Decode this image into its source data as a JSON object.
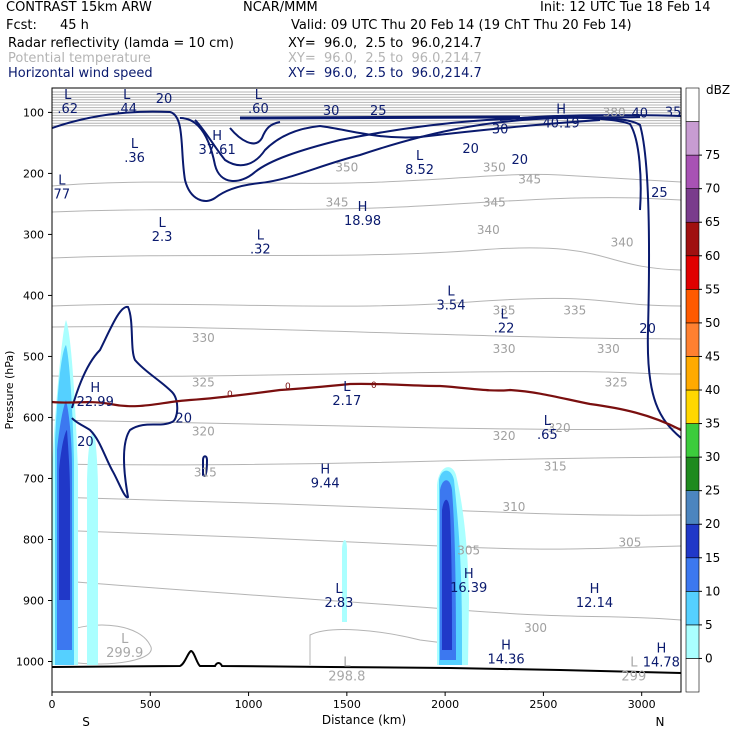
{
  "header": {
    "model": "CONTRAST 15km ARW",
    "org": "NCAR/MMM",
    "init": "Init: 12 UTC Tue 18 Feb 14",
    "fcst_label": "Fcst:",
    "fcst_value": "45 h",
    "valid": "Valid: 09 UTC Thu 20 Feb 14 (19 ChT Thu 20 Feb 14)",
    "fields": [
      {
        "name": "Radar reflectivity (lamda = 10 cm)",
        "xy": "XY=  96.0,  2.5 to  96.0,214.7",
        "color": "#000000"
      },
      {
        "name": "Potential temperature",
        "xy": "XY=  96.0,  2.5 to  96.0,214.7",
        "color": "#b4b4b4"
      },
      {
        "name": "Horizontal wind speed",
        "xy": "XY=  96.0,  2.5 to  96.0,214.7",
        "color": "#0a1a6e"
      }
    ]
  },
  "chart_data": {
    "type": "cross-section",
    "xlabel": "Distance (km)",
    "ylabel": "Pressure (hPa)",
    "xlim": [
      0,
      3200
    ],
    "ylim": [
      1050,
      60
    ],
    "x_ticks": [
      0,
      500,
      1000,
      1500,
      2000,
      2500,
      3000
    ],
    "y_ticks": [
      100,
      200,
      300,
      400,
      500,
      600,
      700,
      800,
      900,
      1000
    ],
    "x_end_labels": {
      "left": "S",
      "right": "N"
    },
    "colorbar": {
      "unit": "dBZ",
      "levels": [
        0,
        5,
        10,
        15,
        20,
        25,
        30,
        35,
        40,
        45,
        50,
        55,
        60,
        65,
        70,
        75
      ],
      "colors": [
        "#ffffff",
        "#aaffff",
        "#55d0ff",
        "#3c78f0",
        "#2038c8",
        "#4c85bf",
        "#1e8a1e",
        "#3ccc3c",
        "#ffd700",
        "#ffaa00",
        "#ff8030",
        "#ff5a00",
        "#e00000",
        "#a01010",
        "#7a3c8c",
        "#a852b4",
        "#c89cd2",
        "#ffffff"
      ]
    },
    "theta_labels": [
      {
        "x": 1500,
        "p": 190,
        "t": "350"
      },
      {
        "x": 2250,
        "p": 190,
        "t": "350"
      },
      {
        "x": 2250,
        "p": 248,
        "t": "345"
      },
      {
        "x": 1450,
        "p": 248,
        "t": "345"
      },
      {
        "x": 2220,
        "p": 293,
        "t": "340"
      },
      {
        "x": 2900,
        "p": 313,
        "t": "340"
      },
      {
        "x": 2300,
        "p": 425,
        "t": "335"
      },
      {
        "x": 2660,
        "p": 425,
        "t": "335"
      },
      {
        "x": 770,
        "p": 470,
        "t": "330"
      },
      {
        "x": 2300,
        "p": 488,
        "t": "330"
      },
      {
        "x": 2830,
        "p": 488,
        "t": "330"
      },
      {
        "x": 770,
        "p": 543,
        "t": "325"
      },
      {
        "x": 2870,
        "p": 543,
        "t": "325"
      },
      {
        "x": 770,
        "p": 623,
        "t": "320"
      },
      {
        "x": 2300,
        "p": 630,
        "t": "320"
      },
      {
        "x": 2580,
        "p": 617,
        "t": "320"
      },
      {
        "x": 780,
        "p": 690,
        "t": "315"
      },
      {
        "x": 2560,
        "p": 680,
        "t": "315"
      },
      {
        "x": 2350,
        "p": 747,
        "t": "310"
      },
      {
        "x": 2120,
        "p": 818,
        "t": "305"
      },
      {
        "x": 2940,
        "p": 805,
        "t": "305"
      },
      {
        "x": 2460,
        "p": 945,
        "t": "300"
      },
      {
        "x": 2430,
        "p": 210,
        "t": "345"
      },
      {
        "x": 2860,
        "p": 100,
        "t": "380"
      }
    ],
    "extrema": [
      {
        "type": "L",
        "value": ".62",
        "x": 80,
        "p": 78,
        "c": "navy"
      },
      {
        "type": "L",
        "value": ".44",
        "x": 380,
        "p": 78,
        "c": "navy"
      },
      {
        "type": "L",
        "value": ".60",
        "x": 1050,
        "p": 78,
        "c": "navy"
      },
      {
        "type": "L",
        "value": ".36",
        "x": 420,
        "p": 158,
        "c": "navy"
      },
      {
        "type": "H",
        "value": "37.61",
        "x": 840,
        "p": 145,
        "c": "navy"
      },
      {
        "type": "L",
        "value": "8.52",
        "x": 1870,
        "p": 178,
        "c": "navy"
      },
      {
        "type": "H",
        "value": "40.19",
        "x": 2590,
        "p": 102,
        "c": "navy"
      },
      {
        "type": "L",
        "value": "77",
        "x": 50,
        "p": 218,
        "c": "navy"
      },
      {
        "type": "H",
        "value": "18.98",
        "x": 1580,
        "p": 262,
        "c": "navy"
      },
      {
        "type": "L",
        "value": "2.3",
        "x": 560,
        "p": 288,
        "c": "navy"
      },
      {
        "type": "L",
        "value": ".32",
        "x": 1060,
        "p": 308,
        "c": "navy"
      },
      {
        "type": "L",
        "value": "3.54",
        "x": 2030,
        "p": 400,
        "c": "navy"
      },
      {
        "type": "L",
        "value": ".22",
        "x": 2300,
        "p": 438,
        "c": "navy"
      },
      {
        "type": "H",
        "value": "22.99",
        "x": 220,
        "p": 558,
        "c": "navy"
      },
      {
        "type": "L",
        "value": "2.17",
        "x": 1500,
        "p": 557,
        "c": "navy"
      },
      {
        "type": "L",
        "value": ".65",
        "x": 2520,
        "p": 612,
        "c": "navy"
      },
      {
        "type": "H",
        "value": "9.44",
        "x": 1390,
        "p": 692,
        "c": "navy"
      },
      {
        "type": "L",
        "value": "2.83",
        "x": 1460,
        "p": 888,
        "c": "navy"
      },
      {
        "type": "H",
        "value": "16.39",
        "x": 2120,
        "p": 863,
        "c": "navy"
      },
      {
        "type": "H",
        "value": "12.14",
        "x": 2760,
        "p": 888,
        "c": "navy"
      },
      {
        "type": "H",
        "value": "14.36",
        "x": 2310,
        "p": 980,
        "c": "navy"
      },
      {
        "type": "H",
        "value": "14.78",
        "x": 3100,
        "p": 985,
        "c": "navy"
      },
      {
        "type": "L",
        "value": "299.9",
        "x": 370,
        "p": 970,
        "c": "gray"
      },
      {
        "type": "L",
        "value": "298.8",
        "x": 1500,
        "p": 1008,
        "c": "gray"
      },
      {
        "type": "L",
        "value": "299",
        "x": 2960,
        "p": 1008,
        "c": "gray"
      }
    ],
    "wind_labels": [
      {
        "x": 570,
        "p": 78,
        "t": "20"
      },
      {
        "x": 1420,
        "p": 98,
        "t": "30"
      },
      {
        "x": 1660,
        "p": 98,
        "t": "25"
      },
      {
        "x": 2280,
        "p": 128,
        "t": "30"
      },
      {
        "x": 2130,
        "p": 160,
        "t": "20"
      },
      {
        "x": 2380,
        "p": 178,
        "t": "20"
      },
      {
        "x": 2990,
        "p": 102,
        "t": "40"
      },
      {
        "x": 3160,
        "p": 100,
        "t": "35"
      },
      {
        "x": 3090,
        "p": 232,
        "t": "25"
      },
      {
        "x": 3030,
        "p": 455,
        "t": "20"
      },
      {
        "x": 670,
        "p": 602,
        "t": "20"
      },
      {
        "x": 170,
        "p": 640,
        "t": "20"
      }
    ],
    "freezing_label": "0"
  }
}
